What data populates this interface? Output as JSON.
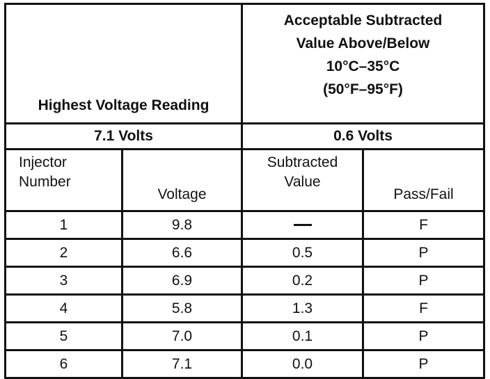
{
  "table": {
    "header": {
      "left": "Highest Voltage Reading",
      "right_lines": [
        "Acceptable Subtracted",
        "Value Above/Below",
        "10°C–35°C",
        "(50°F–95°F)"
      ]
    },
    "reference_values": {
      "highest_voltage": "7.1 Volts",
      "acceptable_subtracted": "0.6 Volts"
    },
    "columns": {
      "injector_line1": "Injector",
      "injector_line2": "Number",
      "voltage": "Voltage",
      "subtracted_line1": "Subtracted",
      "subtracted_line2": "Value",
      "pass_fail": "Pass/Fail"
    },
    "rows": [
      {
        "injector": "1",
        "voltage": "9.8",
        "subtracted": "—",
        "result": "F"
      },
      {
        "injector": "2",
        "voltage": "6.6",
        "subtracted": "0.5",
        "result": "P"
      },
      {
        "injector": "3",
        "voltage": "6.9",
        "subtracted": "0.2",
        "result": "P"
      },
      {
        "injector": "4",
        "voltage": "5.8",
        "subtracted": "1.3",
        "result": "F"
      },
      {
        "injector": "5",
        "voltage": "7.0",
        "subtracted": "0.1",
        "result": "P"
      },
      {
        "injector": "6",
        "voltage": "7.1",
        "subtracted": "0.0",
        "result": "P"
      }
    ]
  }
}
